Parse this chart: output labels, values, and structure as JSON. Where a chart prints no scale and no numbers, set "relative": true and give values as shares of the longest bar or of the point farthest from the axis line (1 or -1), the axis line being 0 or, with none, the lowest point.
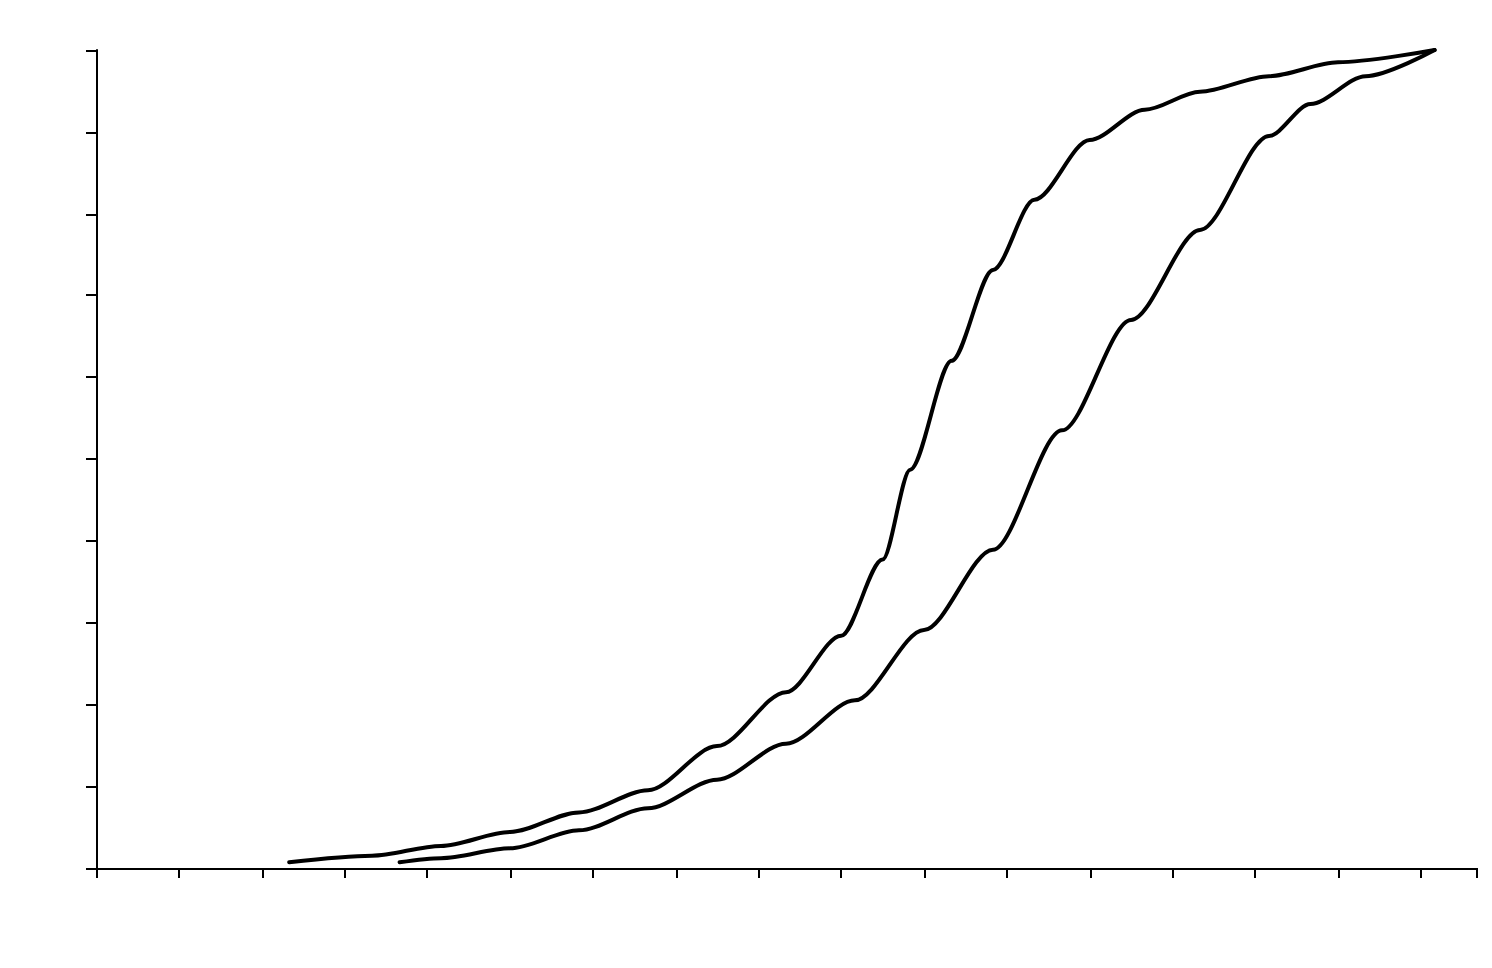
{
  "chart_data": {
    "type": "line",
    "relative": true,
    "line_style": "solid",
    "grid": false,
    "categories": [
      null,
      null,
      null,
      null,
      null,
      null,
      null,
      null,
      null,
      null,
      null,
      null,
      null,
      null,
      null,
      null,
      null,
      null,
      null,
      null,
      null,
      null,
      null,
      null,
      null,
      null,
      null,
      null,
      null,
      null,
      null,
      null,
      null,
      null,
      null,
      null,
      null,
      null,
      null,
      null,
      null,
      null,
      null,
      null,
      null,
      null,
      null,
      null,
      null,
      null,
      null,
      null,
      null,
      null,
      null,
      null,
      null,
      null,
      null,
      null,
      null,
      null,
      null,
      null,
      null,
      null,
      null,
      null,
      null,
      null,
      null,
      null,
      null,
      null,
      null,
      null,
      null,
      null,
      null,
      null,
      null,
      null,
      null,
      null,
      null,
      null,
      null,
      null,
      null,
      null,
      null,
      null,
      null,
      null,
      null,
      null,
      null,
      null,
      null,
      null,
      null
    ],
    "series": [
      {
        "color": "#000000",
        "values": [
          null,
          null,
          null,
          null,
          null,
          null,
          null,
          null,
          null,
          null,
          null,
          null,
          null,
          null,
          0.007,
          null,
          null,
          null,
          null,
          null,
          0.015,
          null,
          null,
          null,
          null,
          0.027,
          null,
          null,
          null,
          null,
          0.044,
          null,
          null,
          null,
          null,
          0.068,
          null,
          null,
          null,
          null,
          0.095,
          null,
          null,
          null,
          null,
          0.149,
          null,
          null,
          null,
          null,
          0.215,
          null,
          null,
          null,
          0.284,
          null,
          null,
          0.377,
          null,
          0.487,
          null,
          null,
          0.62,
          null,
          null,
          0.731,
          null,
          null,
          0.817,
          null,
          null,
          null,
          0.89,
          null,
          null,
          null,
          0.927,
          null,
          null,
          null,
          0.949,
          null,
          null,
          null,
          null,
          0.968,
          null,
          null,
          null,
          null,
          0.985,
          null,
          null,
          null,
          null,
          null,
          null,
          1,
          null,
          null,
          null
        ]
      },
      {
        "color": "#000000",
        "values": [
          null,
          null,
          null,
          null,
          null,
          null,
          null,
          null,
          null,
          null,
          null,
          null,
          null,
          null,
          null,
          null,
          null,
          null,
          null,
          null,
          null,
          null,
          0.007,
          null,
          null,
          0.012,
          null,
          null,
          null,
          null,
          0.024,
          null,
          null,
          null,
          null,
          0.046,
          null,
          null,
          null,
          null,
          0.073,
          null,
          null,
          null,
          null,
          0.108,
          null,
          null,
          null,
          null,
          0.152,
          null,
          null,
          null,
          null,
          0.205,
          null,
          null,
          null,
          null,
          0.291,
          null,
          null,
          null,
          null,
          0.389,
          null,
          null,
          null,
          null,
          0.535,
          null,
          null,
          null,
          null,
          0.67,
          null,
          null,
          null,
          null,
          0.78,
          null,
          null,
          null,
          null,
          0.895,
          null,
          null,
          0.934,
          null,
          null,
          null,
          0.968,
          null,
          null,
          null,
          null,
          1,
          null,
          null,
          null
        ]
      }
    ]
  }
}
